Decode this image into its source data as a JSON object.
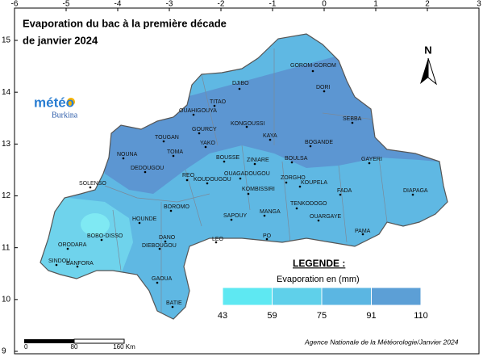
{
  "title": [
    "Evaporation du bac à la première décade",
    "de janvier 2024"
  ],
  "logo": {
    "name": "météo",
    "country": "Burkina"
  },
  "north": "N",
  "xticks": [
    -6,
    -5,
    -4,
    -3,
    -2,
    -1,
    0,
    1,
    2,
    3
  ],
  "yticks": [
    9,
    10,
    11,
    12,
    13,
    14,
    15
  ],
  "cities": [
    "GOROM-GOROM",
    "DORI",
    "DJIBO",
    "TITAO",
    "OUAHIGOUYA",
    "SEBBA",
    "KONGOUSSI",
    "GOURCY",
    "KAYA",
    "TOUGAN",
    "YAKO",
    "BOGANDE",
    "NOUNA",
    "TOMA",
    "BOUSSE",
    "ZINIARE",
    "BOULSA",
    "GAYERI",
    "DEDOUGOU",
    "REO",
    "KOUDOUGOU",
    "OUAGADOUGOU",
    "ZORGHO",
    "SOLENSO",
    "KOUPELA",
    "KOMBISSIRI",
    "FADA",
    "DIAPAGA",
    "BOROMO",
    "TENKODOGO",
    "SAPOUY",
    "MANGA",
    "OUARGAYE",
    "HOUNDE",
    "PAMA",
    "BOBO-DISSO",
    "DANO",
    "LEO",
    "PO",
    "DIEBOUGOU",
    "ORODARA",
    "SINDOU",
    "BANFORA",
    "GAOUA",
    "BATIE"
  ],
  "legend": {
    "title": "LEGENDE :",
    "subtitle": "Evaporation en (mm)",
    "ticks": [
      43,
      59,
      75,
      91,
      110
    ],
    "colors": [
      "#5ee8f2",
      "#5fd0ea",
      "#5bb6e2",
      "#5c9fd6"
    ]
  },
  "scale": [
    "0",
    "80",
    "160 Km"
  ],
  "credit": "Agence Nationale de la Météorologie/Janvier 2024"
}
